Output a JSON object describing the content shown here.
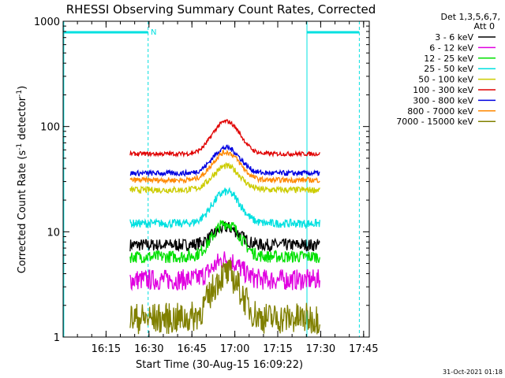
{
  "chart_data": {
    "type": "line",
    "title": "RHESSI Observing Summary Count Rates, Corrected",
    "xlabel": "Start Time (30-Aug-15 16:09:22)",
    "ylabel_main": "Corrected Count Rate (s",
    "ylabel_sup1": "-1",
    "ylabel_mid": " detector",
    "ylabel_sup2": "-1",
    "ylabel_end": ")",
    "ylog": true,
    "ylim": [
      1,
      1000
    ],
    "xlim_minutes": [
      16.0,
      17.783
    ],
    "x_ticks": [
      "16:15",
      "16:30",
      "16:45",
      "17:00",
      "17:15",
      "17:30",
      "17:45"
    ],
    "x_tick_times": [
      16.25,
      16.5,
      16.75,
      17.0,
      17.25,
      17.5,
      17.75
    ],
    "y_ticks": [
      "1",
      "10",
      "100",
      "1000"
    ],
    "y_tick_values": [
      1,
      10,
      100,
      1000
    ],
    "legend_header": [
      "Det 1,3,5,6,7,",
      "Att 0"
    ],
    "legend_placement": "right",
    "night_marker": "N",
    "data_start": 16.39,
    "data_end": 17.495,
    "flare_peak_time": 16.95,
    "series": [
      {
        "name": "3 - 6 keV",
        "color": "#000000",
        "base": 7.5,
        "peak": 11,
        "noise": 0.06
      },
      {
        "name": "6 - 12 keV",
        "color": "#e000e0",
        "base": 3.5,
        "peak": 5.5,
        "noise": 0.1
      },
      {
        "name": "12 - 25 keV",
        "color": "#00e000",
        "base": 5.8,
        "peak": 12,
        "noise": 0.06
      },
      {
        "name": "25 - 50 keV",
        "color": "#00e0e0",
        "base": 12,
        "peak": 24,
        "noise": 0.04
      },
      {
        "name": "50 - 100 keV",
        "color": "#cccc00",
        "base": 25,
        "peak": 42,
        "noise": 0.03
      },
      {
        "name": "100 - 300 keV",
        "color": "#e00000",
        "base": 55,
        "peak": 112,
        "noise": 0.02
      },
      {
        "name": "300 - 800 keV",
        "color": "#0000e0",
        "base": 36,
        "peak": 63,
        "noise": 0.025
      },
      {
        "name": "800 - 7000 keV",
        "color": "#ff8800",
        "base": 31,
        "peak": 57,
        "noise": 0.025
      },
      {
        "name": "7000 - 15000 keV",
        "color": "#808000",
        "base": 1.5,
        "peak": 4,
        "noise": 0.15
      }
    ]
  },
  "timestamp": "31-Oct-2021 01:18"
}
